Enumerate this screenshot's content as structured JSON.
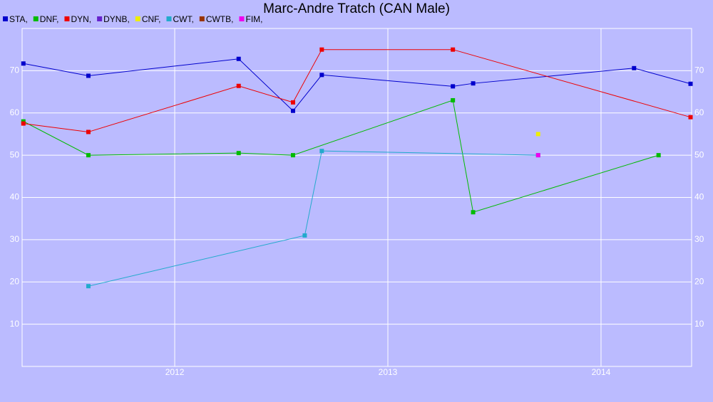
{
  "chart_data": {
    "type": "line",
    "title": "Marc-Andre Tratch (CAN Male)",
    "xlim": [
      2011.284,
      2014.425
    ],
    "xticks": [
      2012,
      2013,
      2014
    ],
    "ylim": [
      0,
      80
    ],
    "yticks": [
      10,
      20,
      30,
      40,
      50,
      60,
      70
    ],
    "grid": true,
    "series": [
      {
        "name": "STA,",
        "color": "#0000cc",
        "x": [
          2011.29,
          2011.595,
          2012.3,
          2012.555,
          2012.69,
          2013.305,
          2013.4,
          2014.155,
          2014.42
        ],
        "values": [
          71.7,
          68.8,
          72.8,
          60.5,
          69,
          66.3,
          67,
          70.6,
          66.9
        ]
      },
      {
        "name": "DNF,",
        "color": "#00bb00",
        "x": [
          2011.29,
          2011.595,
          2012.3,
          2012.555,
          2013.305,
          2013.4,
          2014.27
        ],
        "values": [
          58,
          50,
          50.5,
          50,
          63,
          36.5,
          50
        ]
      },
      {
        "name": "DYN,",
        "color": "#ee0000",
        "x": [
          2011.29,
          2011.595,
          2012.3,
          2012.555,
          2012.69,
          2013.305,
          2014.42
        ],
        "values": [
          57.5,
          55.5,
          66.4,
          62.5,
          75,
          75,
          59
        ]
      },
      {
        "name": "DYNB,",
        "color": "#6622cc",
        "x": [],
        "values": []
      },
      {
        "name": "CNF,",
        "color": "#eeee00",
        "x": [
          2013.705
        ],
        "values": [
          55
        ]
      },
      {
        "name": "CWT,",
        "color": "#22aacc",
        "x": [
          2011.595,
          2012.61,
          2012.69,
          2013.705
        ],
        "values": [
          19,
          31,
          51,
          50
        ]
      },
      {
        "name": "CWTB,",
        "color": "#993300",
        "x": [],
        "values": []
      },
      {
        "name": "FIM,",
        "color": "#ee00ee",
        "x": [
          2013.705
        ],
        "values": [
          50
        ]
      }
    ]
  }
}
